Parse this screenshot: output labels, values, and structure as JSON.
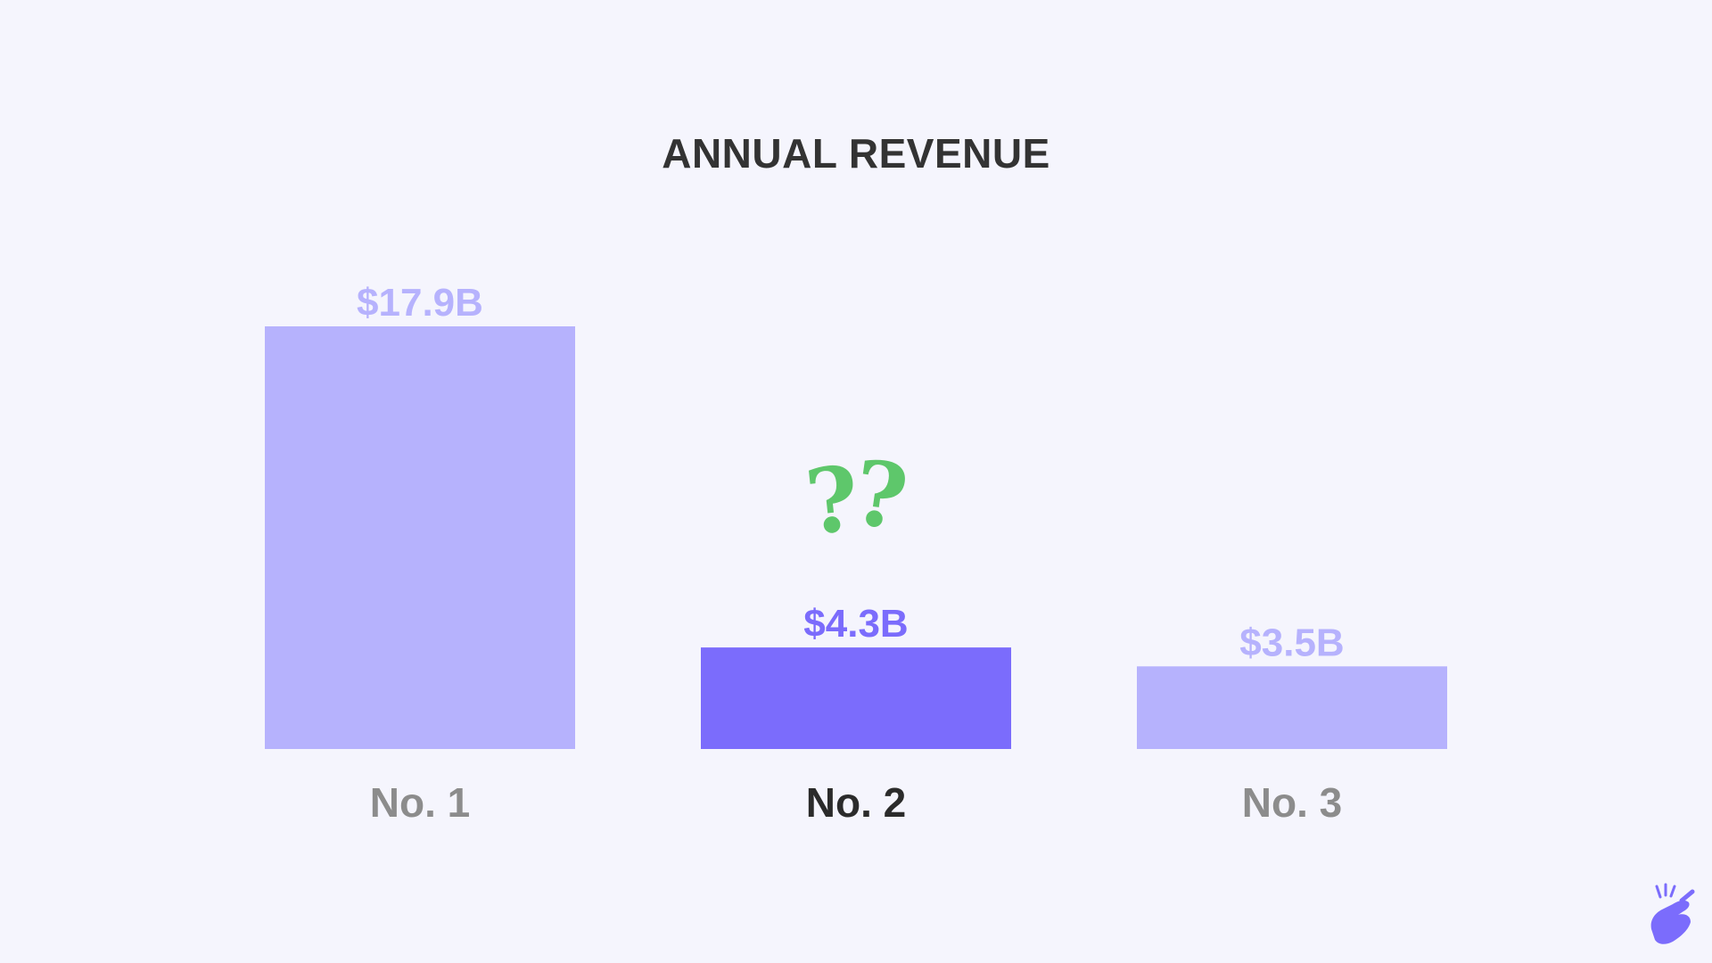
{
  "chart_data": {
    "type": "bar",
    "title": "ANNUAL REVENUE",
    "categories": [
      "No. 1",
      "No. 2",
      "No. 3"
    ],
    "values": [
      17.9,
      4.3,
      3.5
    ],
    "value_labels": [
      "$17.9B",
      "$4.3B",
      "$3.5B"
    ],
    "unit": "$B",
    "highlighted_index": 1,
    "annotation": "??",
    "grid": false,
    "legend": "none"
  },
  "colors": {
    "background": "#f5f5fd",
    "bar": "#b6b2fd",
    "bar_highlight": "#7b6cfc",
    "label_muted": "#b6b2fd",
    "label_highlight": "#7b6cfc",
    "category_muted": "#8c8c8c",
    "category_highlight": "#2b2b2b",
    "title": "#333333",
    "annotation": "#5ec76b",
    "logo": "#7b6cfc"
  },
  "logo": {
    "icon": "snapping-hand-icon"
  }
}
